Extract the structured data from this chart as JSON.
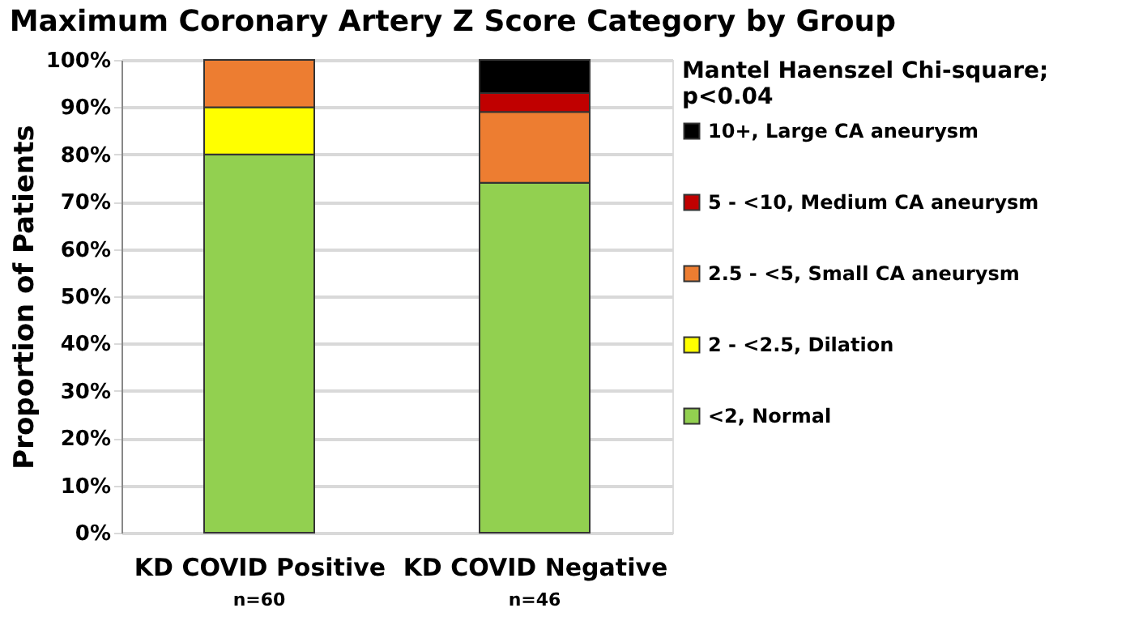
{
  "chart_data": {
    "type": "bar",
    "stacked": true,
    "title": "Maximum Coronary Artery Z Score Category by Group",
    "ylabel": "Proportion of Patients",
    "legend_title": "Mantel Haenszel Chi-square; p<0.04",
    "categories": [
      "KD COVID Positive",
      "KD COVID Negative"
    ],
    "series": [
      {
        "name": "<2, Normal",
        "color": "#92d050",
        "values": [
          80,
          74
        ]
      },
      {
        "name": "2 - <2.5, Dilation",
        "color": "#ffff00",
        "values": [
          10,
          0
        ]
      },
      {
        "name": "2.5 - <5, Small CA aneurysm",
        "color": "#ed7d31",
        "values": [
          10,
          15
        ]
      },
      {
        "name": "5 - <10, Medium CA aneurysm",
        "color": "#c00000",
        "values": [
          null,
          4
        ]
      },
      {
        "name": "10+, Large CA aneurysm",
        "color": "#000000",
        "values": [
          null,
          7
        ]
      }
    ],
    "ylim": [
      0,
      100
    ],
    "yticks": [
      {
        "value": 0,
        "label": "0%"
      },
      {
        "value": 10,
        "label": "10%"
      },
      {
        "value": 20,
        "label": "20%"
      },
      {
        "value": 30,
        "label": "30%"
      },
      {
        "value": 40,
        "label": "40%"
      },
      {
        "value": 50,
        "label": "50%"
      },
      {
        "value": 60,
        "label": "60%"
      },
      {
        "value": 70,
        "label": "70%"
      },
      {
        "value": 80,
        "label": "80%"
      },
      {
        "value": 90,
        "label": "90%"
      },
      {
        "value": 100,
        "label": "100%"
      }
    ],
    "grid": "y",
    "legend": "right",
    "annotations": [
      "n=60",
      "n=46"
    ]
  }
}
